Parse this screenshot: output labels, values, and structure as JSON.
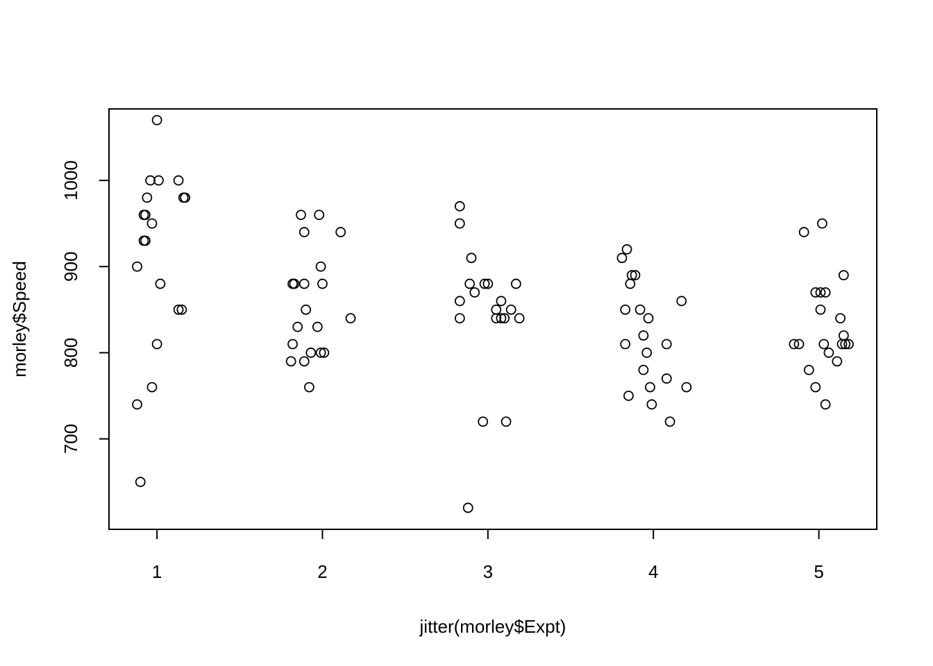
{
  "chart_data": {
    "type": "scatter",
    "title": "",
    "xlabel": "jitter(morley$Expt)",
    "ylabel": "morley$Speed",
    "xlim": [
      0.71,
      5.35
    ],
    "ylim": [
      595,
      1083
    ],
    "xticks": [
      1,
      2,
      3,
      4,
      5
    ],
    "yticks": [
      700,
      800,
      900,
      1000
    ],
    "grid": false,
    "marker": "open-circle",
    "series": [
      {
        "points": [
          {
            "x": 1.0,
            "y": 1070
          },
          {
            "x": 0.96,
            "y": 1000
          },
          {
            "x": 1.01,
            "y": 1000
          },
          {
            "x": 1.13,
            "y": 1000
          },
          {
            "x": 0.94,
            "y": 980
          },
          {
            "x": 1.16,
            "y": 980
          },
          {
            "x": 1.17,
            "y": 980
          },
          {
            "x": 0.92,
            "y": 960
          },
          {
            "x": 0.93,
            "y": 960
          },
          {
            "x": 0.97,
            "y": 950
          },
          {
            "x": 0.92,
            "y": 930
          },
          {
            "x": 0.93,
            "y": 930
          },
          {
            "x": 0.88,
            "y": 900
          },
          {
            "x": 1.02,
            "y": 880
          },
          {
            "x": 1.13,
            "y": 850
          },
          {
            "x": 1.15,
            "y": 850
          },
          {
            "x": 1.0,
            "y": 810
          },
          {
            "x": 0.97,
            "y": 760
          },
          {
            "x": 0.88,
            "y": 740
          },
          {
            "x": 0.9,
            "y": 650
          },
          {
            "x": 1.87,
            "y": 960
          },
          {
            "x": 1.98,
            "y": 960
          },
          {
            "x": 1.89,
            "y": 940
          },
          {
            "x": 2.11,
            "y": 940
          },
          {
            "x": 1.99,
            "y": 900
          },
          {
            "x": 1.82,
            "y": 880
          },
          {
            "x": 1.83,
            "y": 880
          },
          {
            "x": 1.89,
            "y": 880
          },
          {
            "x": 2.0,
            "y": 880
          },
          {
            "x": 1.9,
            "y": 850
          },
          {
            "x": 2.17,
            "y": 840
          },
          {
            "x": 1.85,
            "y": 830
          },
          {
            "x": 1.97,
            "y": 830
          },
          {
            "x": 1.82,
            "y": 810
          },
          {
            "x": 1.93,
            "y": 800
          },
          {
            "x": 1.99,
            "y": 800
          },
          {
            "x": 2.01,
            "y": 800
          },
          {
            "x": 1.81,
            "y": 790
          },
          {
            "x": 1.89,
            "y": 790
          },
          {
            "x": 1.92,
            "y": 760
          },
          {
            "x": 2.83,
            "y": 970
          },
          {
            "x": 2.83,
            "y": 950
          },
          {
            "x": 2.9,
            "y": 910
          },
          {
            "x": 2.89,
            "y": 880
          },
          {
            "x": 2.98,
            "y": 880
          },
          {
            "x": 3.0,
            "y": 880
          },
          {
            "x": 3.17,
            "y": 880
          },
          {
            "x": 2.92,
            "y": 870
          },
          {
            "x": 2.83,
            "y": 860
          },
          {
            "x": 3.08,
            "y": 860
          },
          {
            "x": 3.05,
            "y": 850
          },
          {
            "x": 3.14,
            "y": 850
          },
          {
            "x": 2.83,
            "y": 840
          },
          {
            "x": 3.05,
            "y": 840
          },
          {
            "x": 3.08,
            "y": 840
          },
          {
            "x": 3.1,
            "y": 840
          },
          {
            "x": 3.19,
            "y": 840
          },
          {
            "x": 2.97,
            "y": 720
          },
          {
            "x": 3.11,
            "y": 720
          },
          {
            "x": 2.88,
            "y": 620
          },
          {
            "x": 3.84,
            "y": 920
          },
          {
            "x": 3.81,
            "y": 910
          },
          {
            "x": 3.87,
            "y": 890
          },
          {
            "x": 3.89,
            "y": 890
          },
          {
            "x": 3.86,
            "y": 880
          },
          {
            "x": 4.17,
            "y": 860
          },
          {
            "x": 3.83,
            "y": 850
          },
          {
            "x": 3.92,
            "y": 850
          },
          {
            "x": 3.97,
            "y": 840
          },
          {
            "x": 3.94,
            "y": 820
          },
          {
            "x": 3.83,
            "y": 810
          },
          {
            "x": 4.08,
            "y": 810
          },
          {
            "x": 3.96,
            "y": 800
          },
          {
            "x": 3.94,
            "y": 780
          },
          {
            "x": 4.08,
            "y": 770
          },
          {
            "x": 3.98,
            "y": 760
          },
          {
            "x": 4.2,
            "y": 760
          },
          {
            "x": 3.85,
            "y": 750
          },
          {
            "x": 3.99,
            "y": 740
          },
          {
            "x": 4.1,
            "y": 720
          },
          {
            "x": 5.02,
            "y": 950
          },
          {
            "x": 4.91,
            "y": 940
          },
          {
            "x": 5.15,
            "y": 890
          },
          {
            "x": 4.98,
            "y": 870
          },
          {
            "x": 5.01,
            "y": 870
          },
          {
            "x": 5.04,
            "y": 870
          },
          {
            "x": 5.01,
            "y": 850
          },
          {
            "x": 5.13,
            "y": 840
          },
          {
            "x": 5.15,
            "y": 820
          },
          {
            "x": 4.85,
            "y": 810
          },
          {
            "x": 4.88,
            "y": 810
          },
          {
            "x": 5.03,
            "y": 810
          },
          {
            "x": 5.14,
            "y": 810
          },
          {
            "x": 5.16,
            "y": 810
          },
          {
            "x": 5.18,
            "y": 810
          },
          {
            "x": 5.06,
            "y": 800
          },
          {
            "x": 5.11,
            "y": 790
          },
          {
            "x": 4.94,
            "y": 780
          },
          {
            "x": 4.98,
            "y": 760
          },
          {
            "x": 5.04,
            "y": 740
          }
        ]
      }
    ]
  }
}
